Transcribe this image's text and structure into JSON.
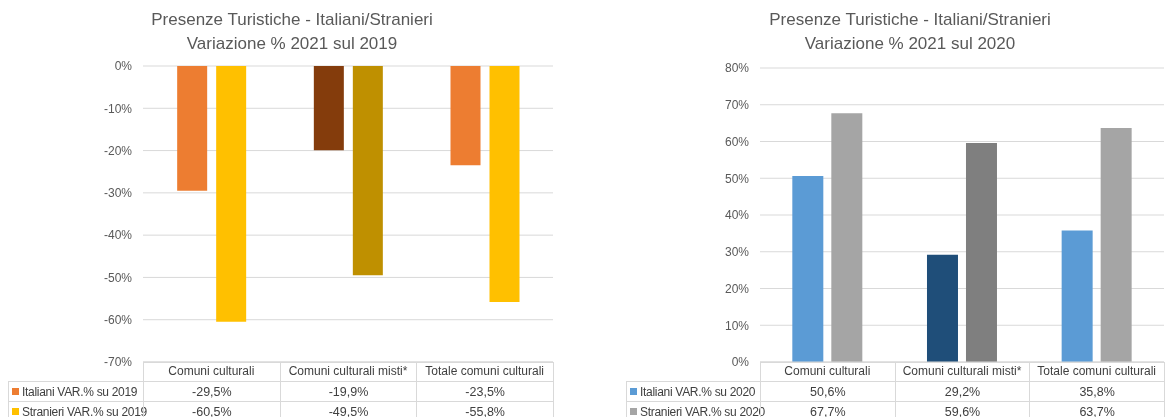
{
  "chart_data": [
    {
      "type": "bar",
      "title": "Presenze Turistiche - Italiani/Stranieri",
      "subtitle": "Variazione % 2021 sul 2019",
      "categories": [
        "Comuni culturali",
        "Comuni culturali misti*",
        "Totale comuni culturali"
      ],
      "series": [
        {
          "name": "Italiani VAR.% su 2019",
          "color": "#ed7d31",
          "colors": [
            "#ed7d31",
            "#843c0c",
            "#ed7d31"
          ],
          "values": [
            -29.5,
            -19.9,
            -23.5
          ],
          "value_labels": [
            "-29,5%",
            "-19,9%",
            "-23,5%"
          ]
        },
        {
          "name": "Stranieri VAR.% su 2019",
          "color": "#ffc000",
          "colors": [
            "#ffc000",
            "#bf9000",
            "#ffc000"
          ],
          "values": [
            -60.5,
            -49.5,
            -55.8
          ],
          "value_labels": [
            "-60,5%",
            "-49,5%",
            "-55,8%"
          ]
        }
      ],
      "ylim": [
        -70,
        0
      ],
      "yticks": [
        {
          "value": 0,
          "label": "0%"
        },
        {
          "value": -10,
          "label": "-10%"
        },
        {
          "value": -20,
          "label": "-20%"
        },
        {
          "value": -30,
          "label": "-30%"
        },
        {
          "value": -40,
          "label": "-40%"
        },
        {
          "value": -50,
          "label": "-50%"
        },
        {
          "value": -60,
          "label": "-60%"
        },
        {
          "value": -70,
          "label": "-70%"
        }
      ],
      "grid": "y",
      "legend": "bottom"
    },
    {
      "type": "bar",
      "title": "Presenze Turistiche - Italiani/Stranieri",
      "subtitle": "Variazione % 2021 sul 2020",
      "categories": [
        "Comuni culturali",
        "Comuni culturali misti*",
        "Totale comuni culturali"
      ],
      "series": [
        {
          "name": "Italiani VAR.% su 2020",
          "color": "#5b9bd5",
          "colors": [
            "#5b9bd5",
            "#1f4e79",
            "#5b9bd5"
          ],
          "values": [
            50.6,
            29.2,
            35.8
          ],
          "value_labels": [
            "50,6%",
            "29,2%",
            "35,8%"
          ]
        },
        {
          "name": "Stranieri VAR.% su 2020",
          "color": "#a5a5a5",
          "colors": [
            "#a5a5a5",
            "#7f7f7f",
            "#a5a5a5"
          ],
          "values": [
            67.7,
            59.6,
            63.7
          ],
          "value_labels": [
            "67,7%",
            "59,6%",
            "63,7%"
          ]
        }
      ],
      "ylim": [
        0,
        80
      ],
      "yticks": [
        {
          "value": 0,
          "label": "0%"
        },
        {
          "value": 10,
          "label": "10%"
        },
        {
          "value": 20,
          "label": "20%"
        },
        {
          "value": 30,
          "label": "30%"
        },
        {
          "value": 40,
          "label": "40%"
        },
        {
          "value": 50,
          "label": "50%"
        },
        {
          "value": 60,
          "label": "60%"
        },
        {
          "value": 70,
          "label": "70%"
        },
        {
          "value": 80,
          "label": "80%"
        }
      ],
      "grid": "y",
      "legend": "bottom"
    }
  ]
}
